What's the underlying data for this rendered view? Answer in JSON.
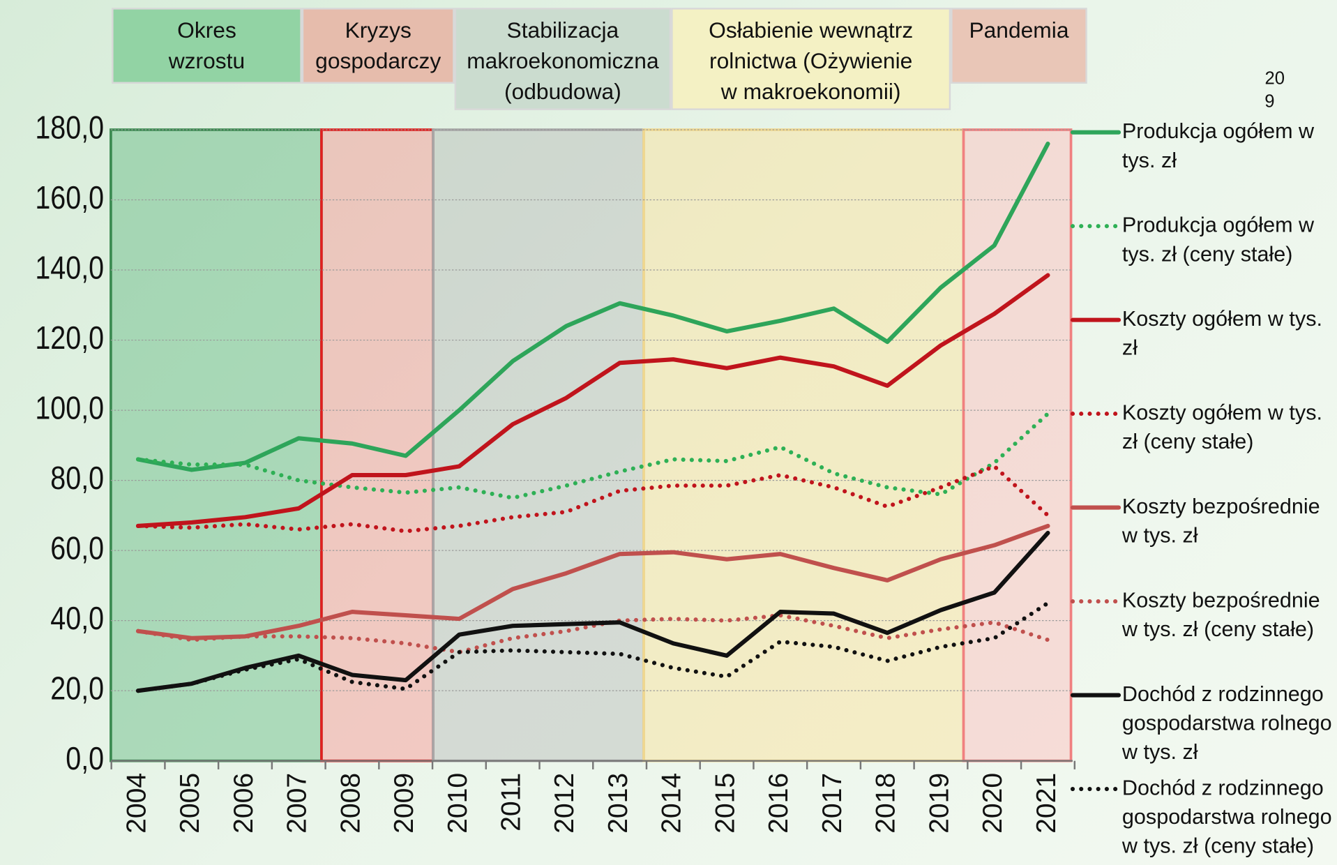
{
  "chart_data": {
    "type": "line",
    "page_number": [
      "20",
      "9"
    ],
    "periods": [
      {
        "label": [
          "Okres",
          "wzrostu"
        ],
        "color": "#3a8a50"
      },
      {
        "label": [
          "Kryzys",
          "gospodarczy"
        ],
        "color": "#e02020"
      },
      {
        "label": [
          "Stabilizacja",
          "makroekonomiczna",
          "(odbudowa)"
        ],
        "color": "#a8a8a8"
      },
      {
        "label": [
          "Osłabienie wewnątrz",
          "rolnictwa (Ożywienie",
          "w makroekonomii)"
        ],
        "color": "#f0d890"
      },
      {
        "label": [
          "Pandemia"
        ],
        "color": "#f08080"
      }
    ],
    "categories": [
      "2004",
      "2005",
      "2006",
      "2007",
      "2008",
      "2009",
      "2010",
      "2011",
      "2012",
      "2013",
      "2014",
      "2015",
      "2016",
      "2017",
      "2018",
      "2019",
      "2020",
      "2021"
    ],
    "ylim": [
      0,
      180
    ],
    "yticks": [
      {
        "value": 0,
        "label": "0,0"
      },
      {
        "value": 20,
        "label": "20,0"
      },
      {
        "value": 40,
        "label": "40,0"
      },
      {
        "value": 60,
        "label": "60,0"
      },
      {
        "value": 80,
        "label": "80,0"
      },
      {
        "value": 100,
        "label": "100,0"
      },
      {
        "value": 120,
        "label": "120,0"
      },
      {
        "value": 140,
        "label": "140,0"
      },
      {
        "value": 160,
        "label": "160,0"
      },
      {
        "value": 180,
        "label": "180,0"
      }
    ],
    "series": [
      {
        "name": "Produkcja ogółem w tys. zł",
        "color": "#2ea55a",
        "style": "solid",
        "values": [
          86,
          83,
          85,
          92,
          90.5,
          87,
          100,
          114,
          124,
          130.5,
          127,
          122.5,
          125.5,
          129,
          119.5,
          135,
          147,
          176
        ]
      },
      {
        "name": "Produkcja ogółem w tys. zł (ceny stałe)",
        "color": "#2eb055",
        "style": "dotted",
        "values": [
          86,
          84.5,
          84.5,
          80,
          78,
          76.5,
          78,
          75,
          78.5,
          82.5,
          86,
          85.5,
          89.5,
          82,
          78,
          76,
          85,
          99
        ]
      },
      {
        "name": "Koszty ogółem w tys. zł",
        "color": "#c0141c",
        "style": "solid",
        "values": [
          67,
          68,
          69.5,
          72,
          81.5,
          81.5,
          84,
          96,
          103.5,
          113.5,
          114.5,
          112,
          115,
          112.5,
          107,
          118.5,
          127.5,
          138.5
        ]
      },
      {
        "name": "Koszty ogółem w tys. zł (ceny stałe)",
        "color": "#c0141c",
        "style": "dotted",
        "values": [
          67,
          66.5,
          67.5,
          66,
          67.5,
          65.5,
          67,
          69.5,
          71,
          77,
          78.5,
          78.5,
          81.5,
          78,
          72.5,
          78,
          84,
          70
        ]
      },
      {
        "name": "Koszty bezpośrednie w tys. zł",
        "color": "#c0504d",
        "style": "solid",
        "values": [
          37,
          35,
          35.5,
          38.5,
          42.5,
          41.5,
          40.5,
          49,
          53.5,
          59,
          59.5,
          57.5,
          59,
          55,
          51.5,
          57.5,
          61.5,
          67
        ]
      },
      {
        "name": "Koszty bezpośrednie w tys. zł (ceny stałe)",
        "color": "#c0504d",
        "style": "dotted",
        "values": [
          37,
          34.5,
          35.5,
          35.5,
          35,
          33.5,
          31,
          35,
          37,
          40,
          40.5,
          40,
          41.5,
          38.5,
          35,
          37.5,
          39.5,
          34.5
        ]
      },
      {
        "name": "Dochód z rodzinnego gospodarstwa rolnego w tys. zł",
        "color": "#111111",
        "style": "solid",
        "values": [
          20,
          22,
          26.5,
          30,
          24.5,
          23,
          36,
          38.5,
          39,
          39.5,
          33.5,
          30,
          42.5,
          42,
          36.5,
          43,
          48,
          65
        ]
      },
      {
        "name": "Dochód z rodzinnego gospodarstwa rolnego w tys. zł (ceny stałe)",
        "color": "#111111",
        "style": "dotted",
        "values": [
          20,
          22,
          26,
          29,
          22.5,
          20.5,
          31,
          31.5,
          31,
          30.5,
          26.5,
          24,
          34,
          32.5,
          28.5,
          32.5,
          35,
          45
        ]
      }
    ]
  }
}
